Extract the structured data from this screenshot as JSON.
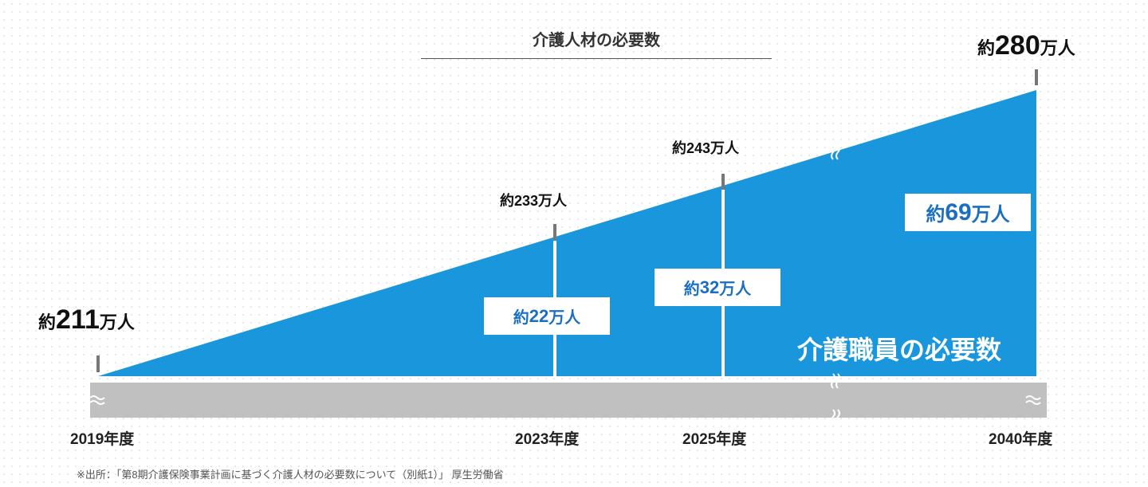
{
  "chart_data": {
    "type": "area",
    "title": "介護人材の必要数",
    "x": [
      "2019年度",
      "2023年度",
      "2025年度",
      "2040年度"
    ],
    "series": [
      {
        "values": [
          211,
          233,
          243,
          280
        ],
        "labels": [
          "約211万人",
          "約233万人",
          "約243万人",
          "約280万人"
        ]
      }
    ],
    "additional_needed": [
      {
        "x": "2023年度",
        "value": 22,
        "label": "約22万人"
      },
      {
        "x": "2025年度",
        "value": 32,
        "label": "約32万人"
      },
      {
        "x": "2040年度",
        "value": 69,
        "label": "約69万人"
      }
    ],
    "area_label": "介護職員の必要数",
    "axis_break": true,
    "colors": {
      "area": "#1a96dc",
      "axis_bar": "#c0c0c0",
      "tick": "#777777",
      "box_text": "#1a6fc4"
    }
  },
  "labels": {
    "v2019": {
      "pre": "約",
      "num": "211",
      "suf": "万人"
    },
    "v2023": "約233万人",
    "v2025": "約243万人",
    "v2040": {
      "pre": "約",
      "num": "280",
      "suf": "万人"
    },
    "box22": {
      "pre": "約",
      "num": "22",
      "suf": "万人"
    },
    "box32": {
      "pre": "約",
      "num": "32",
      "suf": "万人"
    },
    "box69": {
      "pre": "約",
      "num": "69",
      "suf": "万人"
    }
  },
  "source": "※出所：「第8期介護保険事業計画に基づく介護人材の必要数について（別紙1）」 厚生労働省"
}
